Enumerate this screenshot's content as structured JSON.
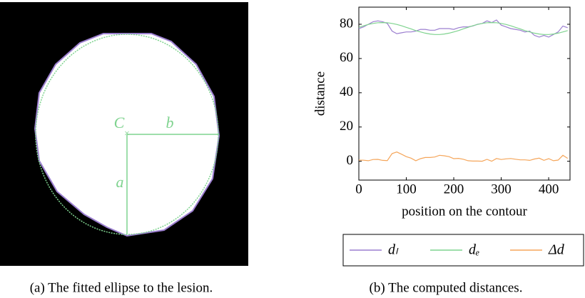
{
  "figure_a": {
    "labels": {
      "center": "C",
      "b": "b",
      "a": "a"
    },
    "caption": "(a) The fitted ellipse to the lesion."
  },
  "chart_data": {
    "type": "line",
    "caption": "(b) The computed distances.",
    "xlabel": "position on the contour",
    "ylabel": "distance",
    "x": [
      0,
      10,
      20,
      30,
      40,
      50,
      60,
      70,
      80,
      90,
      100,
      110,
      120,
      130,
      140,
      150,
      160,
      170,
      180,
      190,
      200,
      210,
      220,
      230,
      240,
      250,
      260,
      270,
      280,
      290,
      300,
      310,
      320,
      330,
      340,
      350,
      360,
      370,
      380,
      390,
      400,
      410,
      420,
      430,
      440
    ],
    "series": [
      {
        "name": "dₗ",
        "color": "#9c7fd0",
        "values": [
          77.5,
          78.5,
          80,
          81.5,
          82,
          81.5,
          80.5,
          76,
          74.5,
          75,
          75.5,
          75.5,
          76,
          77,
          77,
          76.5,
          76.5,
          77.5,
          77.5,
          77.5,
          77,
          78,
          78.5,
          78.5,
          79,
          80,
          80.5,
          82,
          81,
          82.5,
          79.5,
          78.5,
          77.5,
          77,
          76.5,
          75.5,
          76,
          73.5,
          72.5,
          73.5,
          72.5,
          74,
          75.5,
          79,
          78
        ]
      },
      {
        "name": "dₑ",
        "color": "#7fd38f",
        "values": [
          78.2,
          79.1,
          79.9,
          80.5,
          80.9,
          81,
          80.9,
          80.5,
          79.9,
          79.1,
          78.2,
          77.3,
          76.3,
          75.5,
          74.8,
          74.3,
          74,
          74,
          74.3,
          74.8,
          75.5,
          76.3,
          77.3,
          78.2,
          79.1,
          79.9,
          80.5,
          80.9,
          81,
          80.9,
          80.5,
          79.9,
          79.1,
          78.2,
          77.3,
          76.3,
          75.5,
          74.8,
          74.3,
          74,
          74,
          74.3,
          74.8,
          75.5,
          76.3
        ]
      },
      {
        "name": "Δd",
        "color": "#f5a65b",
        "values": [
          0.7,
          0.6,
          0.3,
          1,
          1.1,
          0.5,
          0.4,
          4.5,
          5.4,
          4.1,
          2.7,
          1.8,
          0.3,
          1.5,
          2.2,
          2.2,
          2.5,
          3.5,
          3.2,
          2.7,
          1.5,
          1.7,
          1.2,
          0.3,
          0.1,
          0.1,
          0,
          1.1,
          0,
          1.6,
          1,
          1.4,
          1.6,
          1.2,
          0.8,
          0.8,
          0.5,
          1.3,
          1.8,
          0.5,
          1.5,
          0.3,
          0.7,
          3.5,
          1.7
        ]
      }
    ],
    "xlim": [
      0,
      445
    ],
    "ylim": [
      -11,
      90
    ],
    "xticks": [
      0,
      100,
      200,
      300,
      400
    ],
    "yticks": [
      0,
      20,
      40,
      60,
      80
    ]
  }
}
